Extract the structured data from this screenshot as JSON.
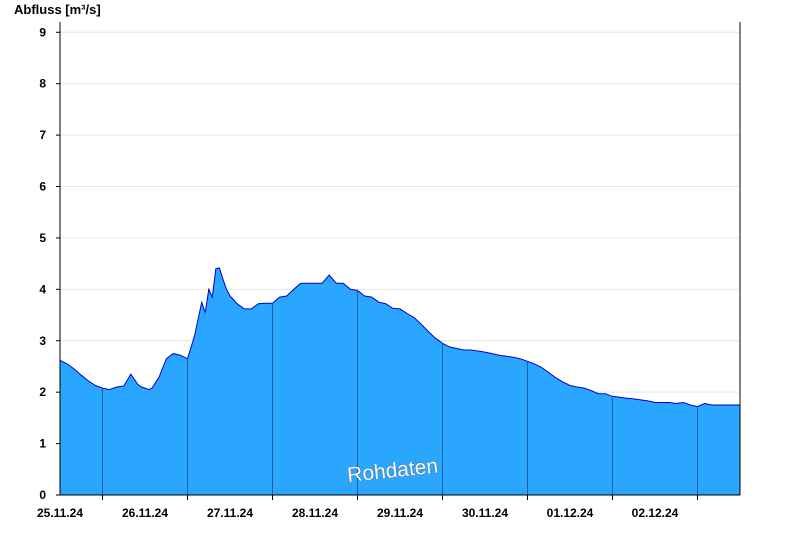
{
  "chart_data": {
    "type": "area",
    "ylabel": "Abfluss [m³/s]",
    "ylim": [
      0,
      9.2
    ],
    "yticks": [
      0,
      1,
      2,
      3,
      4,
      5,
      6,
      7,
      8,
      9
    ],
    "xlim": [
      "2024-11-24T12:00",
      "2024-12-02T12:00"
    ],
    "day_boundaries": [
      "2024-11-25T00:00",
      "2024-11-26T00:00",
      "2024-11-27T00:00",
      "2024-11-28T00:00",
      "2024-11-29T00:00",
      "2024-11-30T00:00",
      "2024-12-01T00:00",
      "2024-12-02T00:00"
    ],
    "xticks": [
      {
        "x": "2024-11-24T12:00",
        "label": "25.11.24"
      },
      {
        "x": "2024-11-25T12:00",
        "label": "26.11.24"
      },
      {
        "x": "2024-11-26T12:00",
        "label": "27.11.24"
      },
      {
        "x": "2024-11-27T12:00",
        "label": "28.11.24"
      },
      {
        "x": "2024-11-28T12:00",
        "label": "29.11.24"
      },
      {
        "x": "2024-11-29T12:00",
        "label": "30.11.24"
      },
      {
        "x": "2024-11-30T12:00",
        "label": "01.12.24"
      },
      {
        "x": "2024-12-01T12:00",
        "label": "02.12.24"
      }
    ],
    "grid": true,
    "annotation": "Rohdaten",
    "colors": {
      "fill": "#2aa6ff",
      "line": "#0000cc",
      "grid": "#e6e6e6",
      "day_line": "#1b5fa0"
    },
    "series": [
      {
        "x": [
          "2024-11-24T12:00",
          "2024-11-24T14:00",
          "2024-11-24T16:00",
          "2024-11-24T18:00",
          "2024-11-24T20:00",
          "2024-11-24T22:00",
          "2024-11-25T00:00",
          "2024-11-25T02:00",
          "2024-11-25T04:00",
          "2024-11-25T06:00",
          "2024-11-25T08:00",
          "2024-11-25T10:00",
          "2024-11-25T11:00",
          "2024-11-25T12:00",
          "2024-11-25T13:00",
          "2024-11-25T14:00",
          "2024-11-25T16:00",
          "2024-11-25T18:00",
          "2024-11-25T20:00",
          "2024-11-25T22:00",
          "2024-11-26T00:00",
          "2024-11-26T02:00",
          "2024-11-26T04:00",
          "2024-11-26T05:00",
          "2024-11-26T06:00",
          "2024-11-26T07:00",
          "2024-11-26T08:00",
          "2024-11-26T09:00",
          "2024-11-26T10:00",
          "2024-11-26T11:00",
          "2024-11-26T12:00",
          "2024-11-26T13:00",
          "2024-11-26T14:00",
          "2024-11-26T16:00",
          "2024-11-26T18:00",
          "2024-11-26T20:00",
          "2024-11-26T22:00",
          "2024-11-27T00:00",
          "2024-11-27T02:00",
          "2024-11-27T04:00",
          "2024-11-27T06:00",
          "2024-11-27T08:00",
          "2024-11-27T10:00",
          "2024-11-27T12:00",
          "2024-11-27T14:00",
          "2024-11-27T16:00",
          "2024-11-27T18:00",
          "2024-11-27T20:00",
          "2024-11-27T22:00",
          "2024-11-28T00:00",
          "2024-11-28T02:00",
          "2024-11-28T04:00",
          "2024-11-28T06:00",
          "2024-11-28T08:00",
          "2024-11-28T10:00",
          "2024-11-28T12:00",
          "2024-11-28T14:00",
          "2024-11-28T16:00",
          "2024-11-28T18:00",
          "2024-11-28T20:00",
          "2024-11-28T22:00",
          "2024-11-29T00:00",
          "2024-11-29T02:00",
          "2024-11-29T04:00",
          "2024-11-29T06:00",
          "2024-11-29T08:00",
          "2024-11-29T10:00",
          "2024-11-29T12:00",
          "2024-11-29T14:00",
          "2024-11-29T16:00",
          "2024-11-29T18:00",
          "2024-11-29T20:00",
          "2024-11-29T22:00",
          "2024-11-30T00:00",
          "2024-11-30T02:00",
          "2024-11-30T04:00",
          "2024-11-30T06:00",
          "2024-11-30T08:00",
          "2024-11-30T10:00",
          "2024-11-30T12:00",
          "2024-11-30T14:00",
          "2024-11-30T16:00",
          "2024-11-30T18:00",
          "2024-11-30T20:00",
          "2024-11-30T22:00",
          "2024-12-01T00:00",
          "2024-12-01T02:00",
          "2024-12-01T04:00",
          "2024-12-01T06:00",
          "2024-12-01T08:00",
          "2024-12-01T10:00",
          "2024-12-01T12:00",
          "2024-12-01T14:00",
          "2024-12-01T16:00",
          "2024-12-01T18:00",
          "2024-12-01T20:00",
          "2024-12-01T22:00",
          "2024-12-02T00:00",
          "2024-12-02T02:00",
          "2024-12-02T04:00",
          "2024-12-02T06:00",
          "2024-12-02T08:00",
          "2024-12-02T10:00",
          "2024-12-02T12:00"
        ],
        "values": [
          2.62,
          2.55,
          2.45,
          2.33,
          2.22,
          2.13,
          2.08,
          2.05,
          2.1,
          2.12,
          2.35,
          2.15,
          2.1,
          2.08,
          2.05,
          2.08,
          2.3,
          2.65,
          2.75,
          2.72,
          2.65,
          3.1,
          3.75,
          3.55,
          4.0,
          3.85,
          4.4,
          4.42,
          4.2,
          4.0,
          3.87,
          3.8,
          3.72,
          3.62,
          3.62,
          3.72,
          3.73,
          3.73,
          3.85,
          3.87,
          4.0,
          4.12,
          4.12,
          4.12,
          4.12,
          4.28,
          4.12,
          4.12,
          4.0,
          3.98,
          3.87,
          3.85,
          3.75,
          3.72,
          3.63,
          3.62,
          3.53,
          3.45,
          3.32,
          3.18,
          3.05,
          2.95,
          2.88,
          2.85,
          2.82,
          2.82,
          2.8,
          2.78,
          2.75,
          2.72,
          2.7,
          2.68,
          2.65,
          2.6,
          2.55,
          2.48,
          2.38,
          2.28,
          2.2,
          2.13,
          2.1,
          2.08,
          2.03,
          1.97,
          1.97,
          1.92,
          1.9,
          1.88,
          1.87,
          1.85,
          1.83,
          1.8,
          1.8,
          1.8,
          1.78,
          1.8,
          1.75,
          1.72,
          1.78,
          1.75,
          1.75,
          1.75,
          1.75,
          1.75
        ]
      }
    ]
  }
}
